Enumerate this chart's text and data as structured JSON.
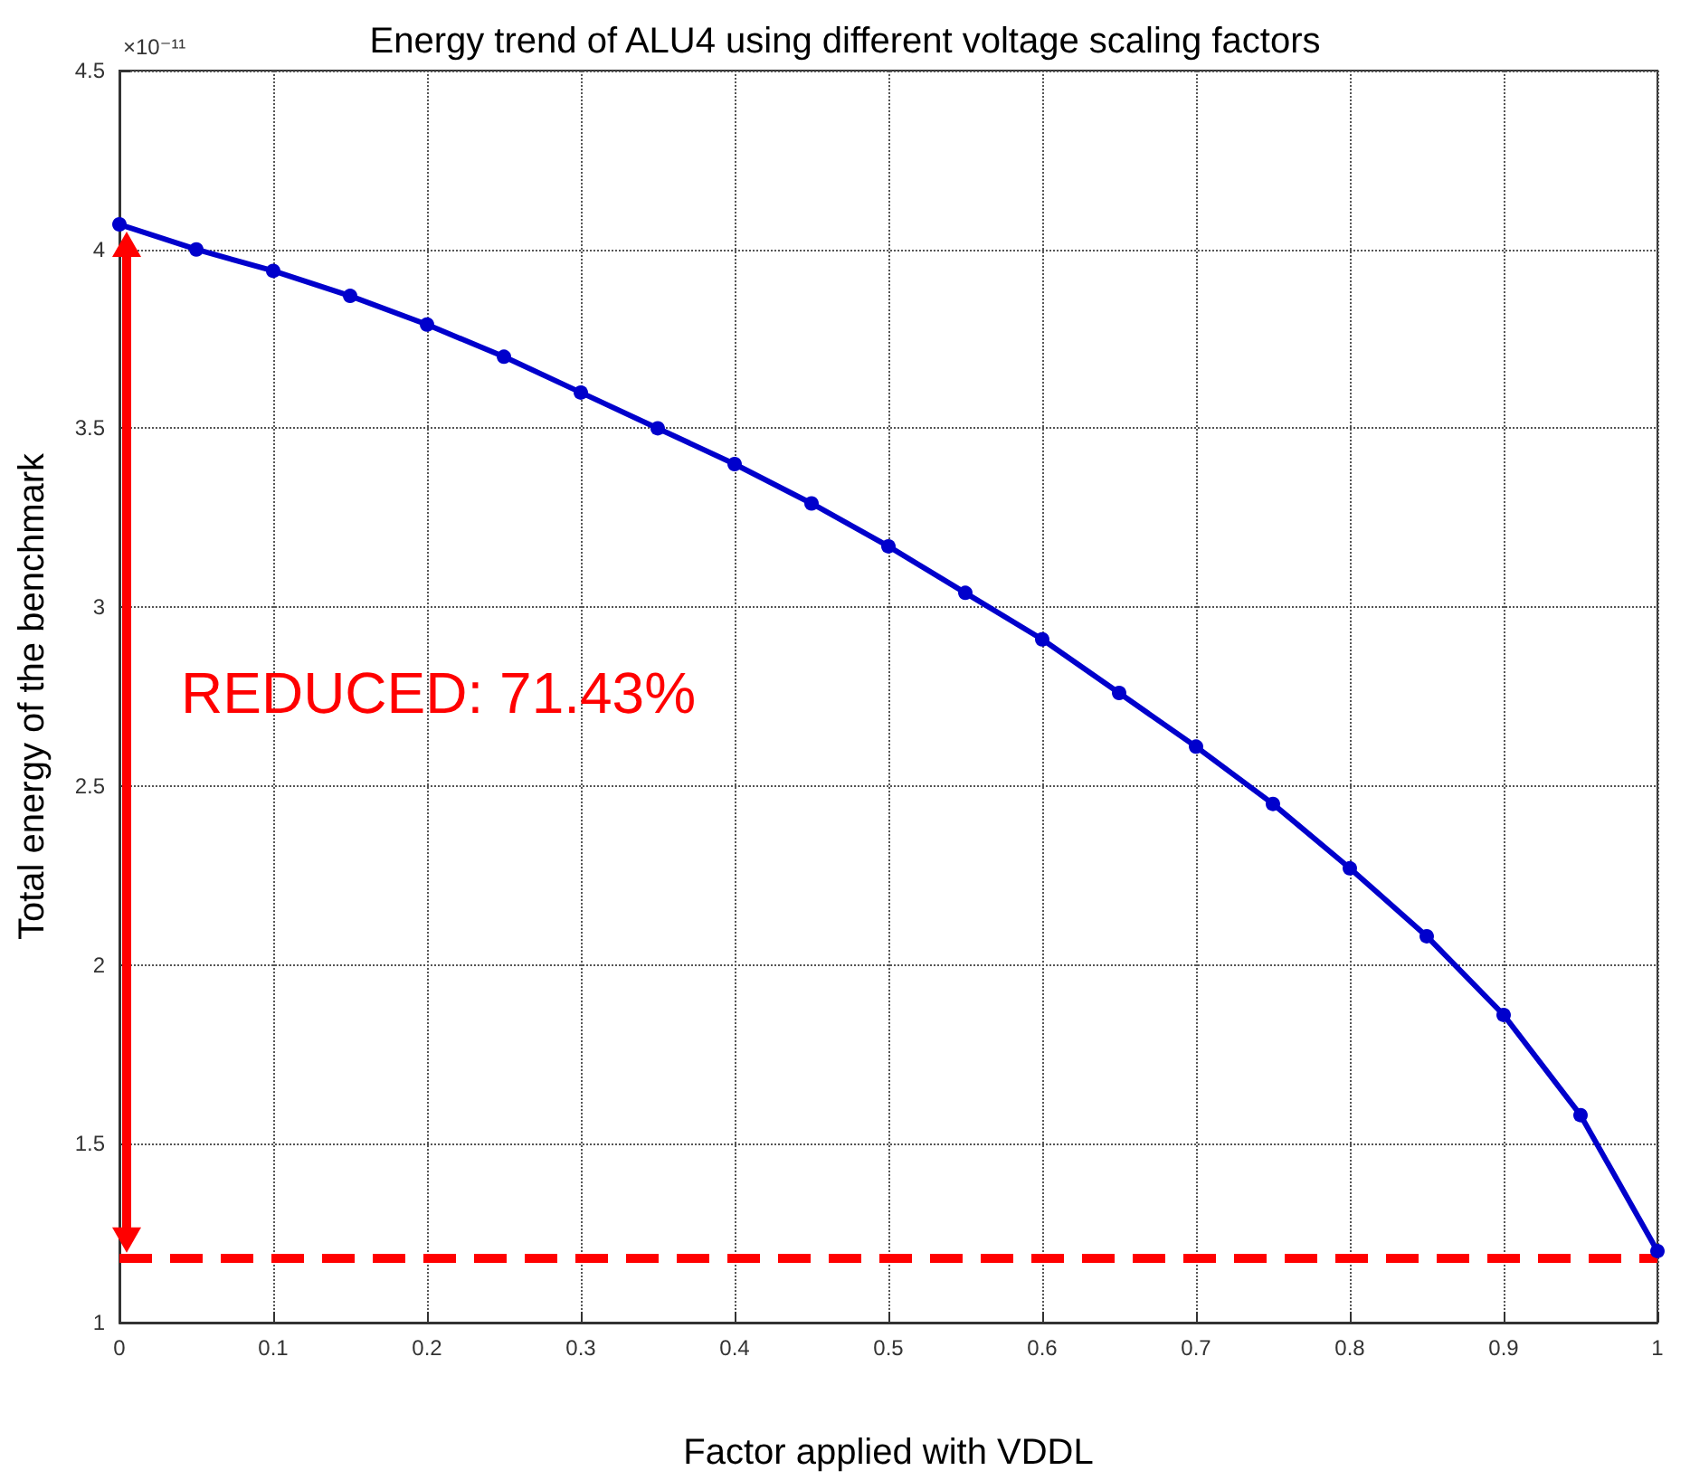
{
  "chart_data": {
    "type": "line",
    "title": "Energy trend of ALU4 using different voltage scaling factors",
    "xlabel": "Factor applied with VDDL",
    "ylabel": "Total energy of the benchmark",
    "x": [
      0,
      0.05,
      0.1,
      0.15,
      0.2,
      0.25,
      0.3,
      0.35,
      0.4,
      0.45,
      0.5,
      0.55,
      0.6,
      0.65,
      0.7,
      0.75,
      0.8,
      0.85,
      0.9,
      0.95,
      1
    ],
    "series": [
      {
        "color": "#0000cc",
        "values": [
          4.07,
          4.0,
          3.94,
          3.87,
          3.79,
          3.7,
          3.6,
          3.5,
          3.4,
          3.29,
          3.17,
          3.04,
          2.91,
          2.76,
          2.61,
          2.45,
          2.27,
          2.08,
          1.86,
          1.58,
          1.2
        ]
      }
    ],
    "xlim": [
      0,
      1
    ],
    "xticks": [
      0,
      0.1,
      0.2,
      0.3,
      0.4,
      0.5,
      0.6,
      0.7,
      0.8,
      0.9,
      1
    ],
    "ylim": [
      1,
      4.5
    ],
    "yticks": [
      1,
      1.5,
      2,
      2.5,
      3,
      3.5,
      4,
      4.5
    ],
    "ref_lines": [
      {
        "axis": "y",
        "value": 1.18,
        "color": "#ff0000",
        "line_style": "dashed"
      }
    ],
    "annotations": [
      "×10⁻¹¹",
      "REDUCED: 71.43%"
    ],
    "grid": true,
    "marker": "circle",
    "line_style": "solid"
  }
}
